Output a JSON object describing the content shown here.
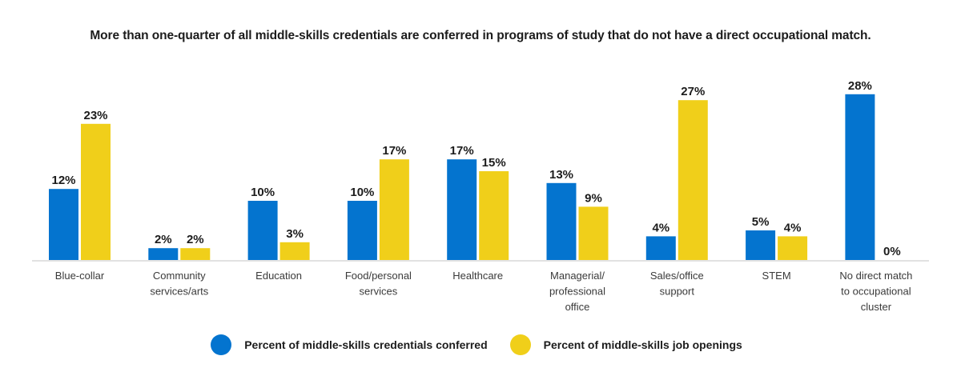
{
  "colors": {
    "credentials": "#0474cf",
    "openings": "#f0cf1a",
    "axis": "#d9d9d9",
    "text": "#1c1c1c"
  },
  "chart_data": {
    "type": "bar",
    "title": "More than one-quarter of all middle-skills credentials are conferred in programs of study that do not have a direct occupational match.",
    "xlabel": "",
    "ylabel": "",
    "ylim": [
      0,
      28
    ],
    "grid": false,
    "legend_position": "bottom-center",
    "value_format": "{v}%",
    "categories": [
      [
        "Blue-collar"
      ],
      [
        "Community",
        "services/arts"
      ],
      [
        "Education"
      ],
      [
        "Food/personal",
        "services"
      ],
      [
        "Healthcare"
      ],
      [
        "Managerial/",
        "professional",
        "office"
      ],
      [
        "Sales/office",
        "support"
      ],
      [
        "STEM"
      ],
      [
        "No direct match",
        "to occupational",
        "cluster"
      ]
    ],
    "series": [
      {
        "name": "Percent of middle-skills credentials conferred",
        "color_key": "credentials",
        "values": [
          12,
          2,
          10,
          10,
          17,
          13,
          4,
          5,
          28
        ]
      },
      {
        "name": "Percent of middle-skills job openings",
        "color_key": "openings",
        "values": [
          23,
          2,
          3,
          17,
          15,
          9,
          27,
          4,
          0
        ]
      }
    ]
  }
}
